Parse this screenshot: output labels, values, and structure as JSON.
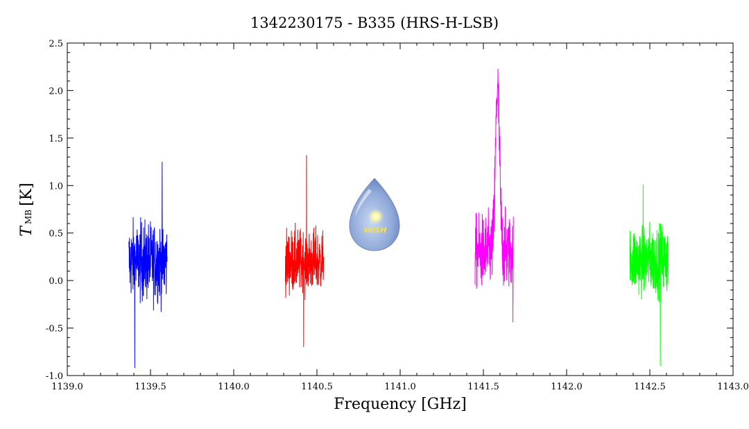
{
  "chart_data": {
    "type": "line",
    "title": "1342230175 - B335 (HRS-H-LSB)",
    "xlabel": "Frequency [GHz]",
    "ylabel": {
      "symbol": "T",
      "subscript": "MB",
      "unit": "[K]"
    },
    "xlim": [
      1139.0,
      1143.0
    ],
    "ylim": [
      -1.0,
      2.5
    ],
    "xticks": [
      "1139.0",
      "1139.5",
      "1140.0",
      "1140.5",
      "1141.0",
      "1141.5",
      "1142.0",
      "1142.5",
      "1143.0"
    ],
    "yticks": [
      "-1.0",
      "-0.5",
      "0.0",
      "0.5",
      "1.0",
      "1.5",
      "2.0",
      "2.5"
    ],
    "grid": false,
    "series": [
      {
        "color": "#0000ff",
        "x_range": [
          1139.37,
          1139.6
        ],
        "center": 0.2,
        "noise": 0.32,
        "min": -0.92,
        "max": 1.25,
        "peak": null
      },
      {
        "color": "#ff0000",
        "x_range": [
          1140.31,
          1140.54
        ],
        "center": 0.2,
        "noise": 0.26,
        "min": -0.7,
        "max": 1.32,
        "peak": null
      },
      {
        "color": "#ff00ff",
        "x_range": [
          1141.45,
          1141.68
        ],
        "center": 0.3,
        "noise": 0.3,
        "min": -0.44,
        "max": 2.23,
        "peak": {
          "x": 1141.585,
          "height": 1.75,
          "width": 0.012
        }
      },
      {
        "color": "#00ff00",
        "x_range": [
          1142.38,
          1142.61
        ],
        "center": 0.22,
        "noise": 0.28,
        "min": -0.9,
        "max": 1.01,
        "peak": null
      }
    ],
    "logo": {
      "text": "WISH"
    }
  }
}
